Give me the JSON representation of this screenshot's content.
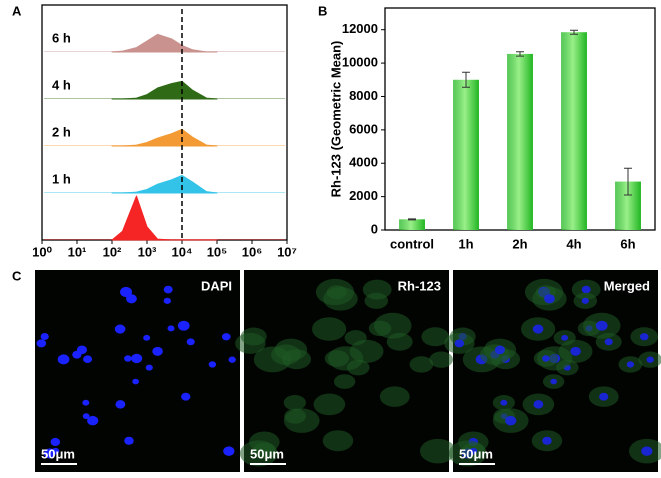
{
  "chart_data": [
    {
      "type": "histogram-overlay",
      "panel_label": "A",
      "x": [
        100,
        200,
        500,
        1000,
        2000,
        5000,
        10000,
        20000,
        50000,
        100000
      ],
      "series": [
        {
          "name": "6 h",
          "color": "#c9928e",
          "values": [
            0,
            2,
            10,
            25,
            40,
            30,
            15,
            5,
            0,
            0
          ]
        },
        {
          "name": "4 h",
          "color": "#2f6b16",
          "values": [
            0,
            0,
            2,
            10,
            25,
            35,
            40,
            20,
            2,
            0
          ]
        },
        {
          "name": "2 h",
          "color": "#f39a34",
          "values": [
            0,
            0,
            2,
            8,
            18,
            28,
            38,
            20,
            2,
            0
          ]
        },
        {
          "name": "1 h",
          "color": "#33c3e8",
          "values": [
            0,
            0,
            2,
            8,
            20,
            30,
            40,
            25,
            3,
            0
          ]
        },
        {
          "name": null,
          "color": "#f52525",
          "values": [
            0,
            20,
            100,
            30,
            2,
            0,
            0,
            0,
            0,
            0
          ]
        }
      ],
      "xlim": [
        1,
        10000000
      ],
      "xscale": "log",
      "xticks": [
        {
          "value": 1,
          "label": "10⁰"
        },
        {
          "value": 10,
          "label": "10¹"
        },
        {
          "value": 100,
          "label": "10²"
        },
        {
          "value": 1000,
          "label": "10³"
        },
        {
          "value": 10000,
          "label": "10⁴"
        },
        {
          "value": 100000,
          "label": "10⁵"
        },
        {
          "value": 1000000,
          "label": "10⁶"
        },
        {
          "value": 10000000,
          "label": "10⁷"
        }
      ],
      "ylim": [
        0,
        100
      ],
      "vline": 10000
    },
    {
      "type": "bar",
      "panel_label": "B",
      "ylabel": "Rh-123 (Geometric Mean)",
      "categories": [
        "control",
        "1h",
        "2h",
        "4h",
        "6h"
      ],
      "values": [
        640,
        9000,
        10550,
        11850,
        2900
      ],
      "errors": [
        30,
        450,
        130,
        120,
        800
      ],
      "color": "#22b522",
      "ylim": [
        0,
        13300
      ],
      "yticks": [
        0,
        2000,
        4000,
        6000,
        8000,
        10000,
        12000
      ]
    }
  ],
  "images": {
    "panel_label": "C",
    "panels": [
      {
        "label": "DAPI",
        "scale_bar": "50μm"
      },
      {
        "label": "Rh-123",
        "scale_bar": "50μm"
      },
      {
        "label": "Merged",
        "scale_bar": "50μm"
      }
    ]
  }
}
